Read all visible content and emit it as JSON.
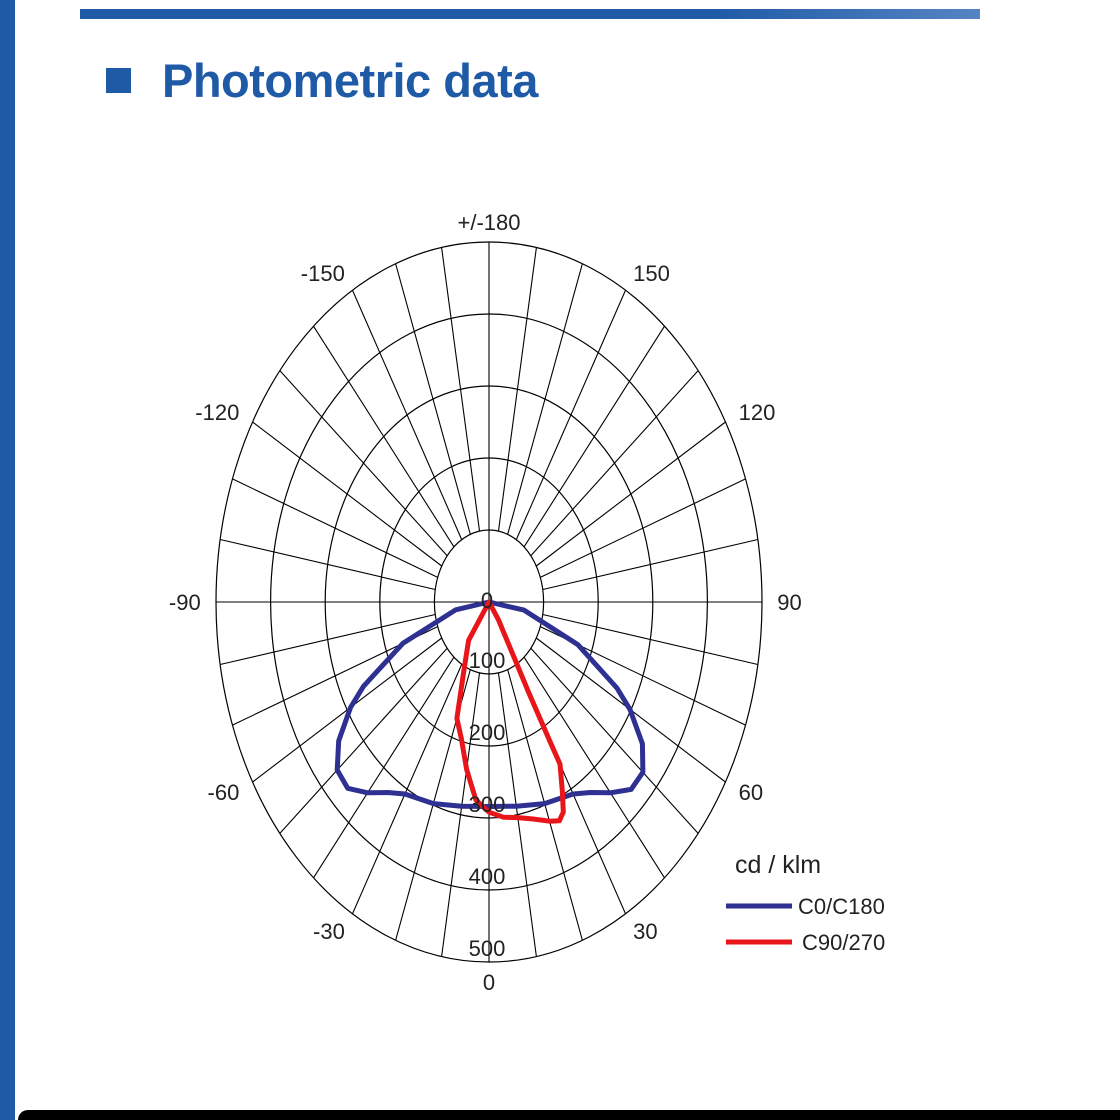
{
  "page": {
    "heading": "Photometric data"
  },
  "chart_data": {
    "type": "polar",
    "title": "",
    "unit": "cd / klm",
    "rlim": [
      0,
      500
    ],
    "ring_values": [
      100,
      200,
      300,
      400,
      500
    ],
    "ring_labels": [
      "100",
      "200",
      "300",
      "400",
      "500"
    ],
    "center_label": "0",
    "angle_step_deg": 10,
    "angle_labels": [
      {
        "angle": 0,
        "text": "0"
      },
      {
        "angle": 30,
        "text": "30"
      },
      {
        "angle": 60,
        "text": "60"
      },
      {
        "angle": 90,
        "text": "90"
      },
      {
        "angle": 120,
        "text": "120"
      },
      {
        "angle": 150,
        "text": "150"
      },
      {
        "angle": 180,
        "text": "+/-180"
      },
      {
        "angle": -30,
        "text": "-30"
      },
      {
        "angle": -60,
        "text": "-60"
      },
      {
        "angle": -90,
        "text": "-90"
      },
      {
        "angle": -120,
        "text": "-120"
      },
      {
        "angle": -150,
        "text": "-150"
      }
    ],
    "grid": true,
    "legend_position": "bottom-right",
    "series": [
      {
        "name": "C0/C180",
        "color": "#2e3192",
        "points": [
          {
            "angle": -90,
            "r": 0
          },
          {
            "angle": -80,
            "r": 62
          },
          {
            "angle": -70,
            "r": 168
          },
          {
            "angle": -63,
            "r": 258
          },
          {
            "angle": -60,
            "r": 293
          },
          {
            "angle": -55,
            "r": 336
          },
          {
            "angle": -50,
            "r": 363
          },
          {
            "angle": -45,
            "r": 366
          },
          {
            "angle": -40,
            "r": 346
          },
          {
            "angle": -35,
            "r": 323
          },
          {
            "angle": -30,
            "r": 308
          },
          {
            "angle": -20,
            "r": 298
          },
          {
            "angle": -10,
            "r": 288
          },
          {
            "angle": 0,
            "r": 284
          },
          {
            "angle": 10,
            "r": 288
          },
          {
            "angle": 20,
            "r": 298
          },
          {
            "angle": 30,
            "r": 308
          },
          {
            "angle": 35,
            "r": 323
          },
          {
            "angle": 40,
            "r": 346
          },
          {
            "angle": 45,
            "r": 368
          },
          {
            "angle": 50,
            "r": 368
          },
          {
            "angle": 55,
            "r": 343
          },
          {
            "angle": 60,
            "r": 298
          },
          {
            "angle": 63,
            "r": 263
          },
          {
            "angle": 70,
            "r": 173
          },
          {
            "angle": 80,
            "r": 65
          },
          {
            "angle": 90,
            "r": 0
          }
        ]
      },
      {
        "name": "C90/270",
        "color": "#e8161b",
        "points": [
          {
            "angle": -50,
            "r": 0
          },
          {
            "angle": -35,
            "r": 65
          },
          {
            "angle": -25,
            "r": 112
          },
          {
            "angle": -20,
            "r": 172
          },
          {
            "angle": -15,
            "r": 196
          },
          {
            "angle": -10,
            "r": 236
          },
          {
            "angle": -5,
            "r": 276
          },
          {
            "angle": 0,
            "r": 292
          },
          {
            "angle": 5,
            "r": 300
          },
          {
            "angle": 10,
            "r": 304
          },
          {
            "angle": 15,
            "r": 312
          },
          {
            "angle": 20,
            "r": 324
          },
          {
            "angle": 23,
            "r": 330
          },
          {
            "angle": 25,
            "r": 322
          },
          {
            "angle": 27,
            "r": 296
          },
          {
            "angle": 30,
            "r": 260
          },
          {
            "angle": 30,
            "r": 228
          },
          {
            "angle": 30,
            "r": 146
          },
          {
            "angle": 35,
            "r": 30
          },
          {
            "angle": 40,
            "r": 0
          }
        ]
      }
    ]
  }
}
